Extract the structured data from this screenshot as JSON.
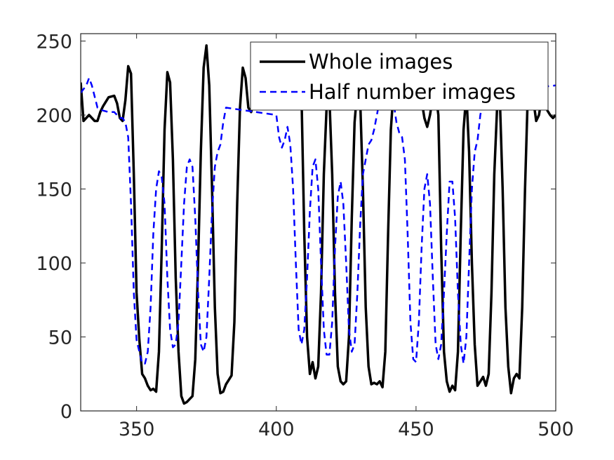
{
  "chart_data": {
    "type": "line",
    "title": "",
    "xlabel": "",
    "ylabel": "",
    "xlim": [
      330,
      500
    ],
    "ylim": [
      0,
      255
    ],
    "xticks": [
      350,
      400,
      450,
      500
    ],
    "yticks": [
      0,
      50,
      100,
      150,
      200,
      250
    ],
    "grid": false,
    "legend_position": "top-right",
    "series": [
      {
        "name": "Whole images",
        "color": "#000000",
        "style": "solid",
        "points": [
          [
            330,
            222
          ],
          [
            331,
            196
          ],
          [
            333,
            200
          ],
          [
            335,
            196
          ],
          [
            336,
            196
          ],
          [
            337,
            202
          ],
          [
            338,
            206
          ],
          [
            340,
            212
          ],
          [
            342,
            213
          ],
          [
            343,
            208
          ],
          [
            344,
            198
          ],
          [
            345,
            196
          ],
          [
            346,
            210
          ],
          [
            347,
            233
          ],
          [
            348,
            228
          ],
          [
            349,
            160
          ],
          [
            350,
            80
          ],
          [
            351,
            48
          ],
          [
            352,
            25
          ],
          [
            353,
            22
          ],
          [
            354,
            17
          ],
          [
            355,
            14
          ],
          [
            356,
            15
          ],
          [
            357,
            13
          ],
          [
            358,
            40
          ],
          [
            359,
            110
          ],
          [
            360,
            190
          ],
          [
            361,
            229
          ],
          [
            362,
            222
          ],
          [
            363,
            170
          ],
          [
            364,
            90
          ],
          [
            365,
            40
          ],
          [
            366,
            10
          ],
          [
            367,
            5
          ],
          [
            368,
            6
          ],
          [
            369,
            8
          ],
          [
            370,
            10
          ],
          [
            371,
            35
          ],
          [
            372,
            100
          ],
          [
            373,
            175
          ],
          [
            374,
            232
          ],
          [
            375,
            247
          ],
          [
            376,
            220
          ],
          [
            377,
            150
          ],
          [
            378,
            70
          ],
          [
            379,
            25
          ],
          [
            380,
            12
          ],
          [
            381,
            13
          ],
          [
            382,
            18
          ],
          [
            383,
            21
          ],
          [
            384,
            24
          ],
          [
            385,
            60
          ],
          [
            386,
            140
          ],
          [
            387,
            205
          ],
          [
            388,
            232
          ],
          [
            389,
            225
          ],
          [
            390,
            205
          ],
          [
            391,
            202
          ],
          [
            392,
            210
          ],
          [
            409,
            215
          ],
          [
            410,
            120
          ],
          [
            411,
            50
          ],
          [
            412,
            25
          ],
          [
            413,
            33
          ],
          [
            414,
            22
          ],
          [
            415,
            30
          ],
          [
            416,
            80
          ],
          [
            417,
            160
          ],
          [
            418,
            205
          ],
          [
            419,
            212
          ],
          [
            420,
            160
          ],
          [
            421,
            80
          ],
          [
            422,
            30
          ],
          [
            423,
            20
          ],
          [
            424,
            18
          ],
          [
            425,
            20
          ],
          [
            426,
            50
          ],
          [
            427,
            130
          ],
          [
            428,
            195
          ],
          [
            429,
            218
          ],
          [
            430,
            212
          ],
          [
            431,
            150
          ],
          [
            432,
            70
          ],
          [
            433,
            30
          ],
          [
            434,
            18
          ],
          [
            435,
            19
          ],
          [
            436,
            18
          ],
          [
            437,
            20
          ],
          [
            438,
            16
          ],
          [
            439,
            40
          ],
          [
            440,
            120
          ],
          [
            441,
            190
          ],
          [
            442,
            218
          ],
          [
            443,
            215
          ],
          [
            452,
            210
          ],
          [
            453,
            198
          ],
          [
            454,
            192
          ],
          [
            455,
            200
          ],
          [
            456,
            212
          ],
          [
            457,
            215
          ],
          [
            458,
            200
          ],
          [
            459,
            110
          ],
          [
            460,
            40
          ],
          [
            461,
            20
          ],
          [
            462,
            13
          ],
          [
            463,
            17
          ],
          [
            464,
            14
          ],
          [
            465,
            40
          ],
          [
            466,
            120
          ],
          [
            467,
            190
          ],
          [
            468,
            215
          ],
          [
            469,
            175
          ],
          [
            470,
            100
          ],
          [
            471,
            45
          ],
          [
            472,
            17
          ],
          [
            473,
            20
          ],
          [
            474,
            23
          ],
          [
            475,
            17
          ],
          [
            476,
            25
          ],
          [
            477,
            80
          ],
          [
            478,
            160
          ],
          [
            479,
            205
          ],
          [
            480,
            210
          ],
          [
            481,
            150
          ],
          [
            482,
            70
          ],
          [
            483,
            30
          ],
          [
            484,
            12
          ],
          [
            485,
            22
          ],
          [
            486,
            25
          ],
          [
            487,
            22
          ],
          [
            488,
            70
          ],
          [
            489,
            150
          ],
          [
            490,
            215
          ],
          [
            491,
            232
          ],
          [
            492,
            210
          ],
          [
            493,
            196
          ],
          [
            494,
            200
          ],
          [
            495,
            212
          ],
          [
            496,
            210
          ],
          [
            497,
            203
          ],
          [
            498,
            200
          ],
          [
            499,
            198
          ],
          [
            500,
            200
          ]
        ]
      },
      {
        "name": "Half number images",
        "color": "#0000ff",
        "style": "dashed",
        "points": [
          [
            330,
            215
          ],
          [
            332,
            220
          ],
          [
            333,
            225
          ],
          [
            334,
            220
          ],
          [
            336,
            205
          ],
          [
            338,
            203
          ],
          [
            340,
            202
          ],
          [
            342,
            202
          ],
          [
            344,
            198
          ],
          [
            345,
            198
          ],
          [
            346,
            195
          ],
          [
            347,
            185
          ],
          [
            348,
            140
          ],
          [
            349,
            80
          ],
          [
            350,
            48
          ],
          [
            351,
            40
          ],
          [
            352,
            32
          ],
          [
            353,
            32
          ],
          [
            354,
            40
          ],
          [
            355,
            70
          ],
          [
            356,
            120
          ],
          [
            357,
            150
          ],
          [
            358,
            162
          ],
          [
            359,
            158
          ],
          [
            360,
            140
          ],
          [
            361,
            90
          ],
          [
            362,
            55
          ],
          [
            363,
            43
          ],
          [
            364,
            45
          ],
          [
            365,
            60
          ],
          [
            366,
            100
          ],
          [
            367,
            140
          ],
          [
            368,
            165
          ],
          [
            369,
            170
          ],
          [
            370,
            165
          ],
          [
            371,
            130
          ],
          [
            372,
            80
          ],
          [
            373,
            45
          ],
          [
            374,
            40
          ],
          [
            375,
            50
          ],
          [
            376,
            90
          ],
          [
            377,
            135
          ],
          [
            378,
            165
          ],
          [
            379,
            175
          ],
          [
            380,
            180
          ],
          [
            381,
            195
          ],
          [
            382,
            205
          ],
          [
            400,
            200
          ],
          [
            401,
            185
          ],
          [
            402,
            178
          ],
          [
            403,
            183
          ],
          [
            404,
            192
          ],
          [
            405,
            180
          ],
          [
            406,
            150
          ],
          [
            407,
            100
          ],
          [
            408,
            55
          ],
          [
            409,
            45
          ],
          [
            410,
            55
          ],
          [
            411,
            90
          ],
          [
            412,
            135
          ],
          [
            413,
            165
          ],
          [
            414,
            170
          ],
          [
            415,
            150
          ],
          [
            416,
            100
          ],
          [
            417,
            55
          ],
          [
            418,
            38
          ],
          [
            419,
            38
          ],
          [
            420,
            60
          ],
          [
            421,
            110
          ],
          [
            422,
            145
          ],
          [
            423,
            155
          ],
          [
            424,
            140
          ],
          [
            425,
            100
          ],
          [
            426,
            55
          ],
          [
            427,
            40
          ],
          [
            428,
            45
          ],
          [
            429,
            80
          ],
          [
            430,
            125
          ],
          [
            431,
            160
          ],
          [
            432,
            170
          ],
          [
            433,
            180
          ],
          [
            434,
            183
          ],
          [
            435,
            190
          ],
          [
            436,
            200
          ],
          [
            437,
            210
          ],
          [
            442,
            208
          ],
          [
            443,
            195
          ],
          [
            444,
            188
          ],
          [
            445,
            185
          ],
          [
            446,
            170
          ],
          [
            447,
            120
          ],
          [
            448,
            60
          ],
          [
            449,
            35
          ],
          [
            450,
            33
          ],
          [
            451,
            60
          ],
          [
            452,
            110
          ],
          [
            453,
            150
          ],
          [
            454,
            160
          ],
          [
            455,
            140
          ],
          [
            456,
            90
          ],
          [
            457,
            45
          ],
          [
            458,
            35
          ],
          [
            459,
            45
          ],
          [
            460,
            80
          ],
          [
            461,
            120
          ],
          [
            462,
            155
          ],
          [
            463,
            155
          ],
          [
            464,
            130
          ],
          [
            465,
            80
          ],
          [
            466,
            45
          ],
          [
            467,
            32
          ],
          [
            468,
            50
          ],
          [
            469,
            100
          ],
          [
            470,
            150
          ],
          [
            471,
            175
          ],
          [
            472,
            183
          ],
          [
            473,
            200
          ],
          [
            474,
            210
          ],
          [
            475,
            215
          ],
          [
            500,
            220
          ]
        ]
      }
    ]
  }
}
